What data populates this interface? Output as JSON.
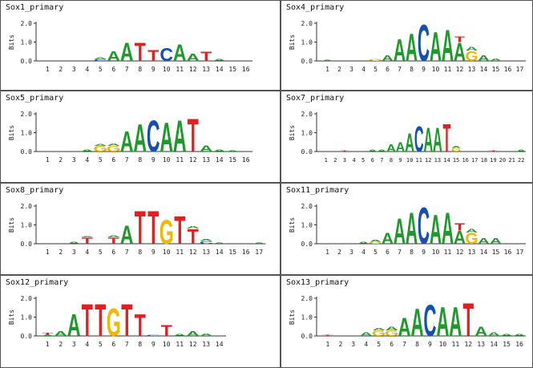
{
  "axis": {
    "ylabel": "Bits",
    "yticks": [
      "2.0",
      "1.0",
      "0.0"
    ]
  },
  "colors": {
    "A": "#1e9a2a",
    "C": "#1450b4",
    "G": "#f0b800",
    "T": "#e02020"
  },
  "panels": [
    {
      "title": "Sox1_primary",
      "length": 16,
      "logo": [
        [],
        [],
        [],
        [],
        [
          [
            "C",
            0.08
          ],
          [
            "A",
            0.1
          ]
        ],
        [
          [
            "A",
            0.55
          ]
        ],
        [
          [
            "A",
            1.0
          ]
        ],
        [
          [
            "T",
            1.0
          ]
        ],
        [
          [
            "T",
            0.6
          ]
        ],
        [
          [
            "C",
            0.7
          ]
        ],
        [
          [
            "A",
            0.9
          ]
        ],
        [
          [
            "A",
            0.4
          ]
        ],
        [
          [
            "T",
            0.5
          ]
        ],
        [
          [
            "A",
            0.12
          ]
        ],
        [],
        []
      ]
    },
    {
      "title": "Sox4_primary",
      "length": 17,
      "logo": [
        [
          [
            "A",
            0.05
          ]
        ],
        [],
        [],
        [],
        [
          [
            "G",
            0.1
          ]
        ],
        [
          [
            "A",
            0.3
          ]
        ],
        [
          [
            "A",
            1.2
          ]
        ],
        [
          [
            "A",
            1.5
          ]
        ],
        [
          [
            "C",
            2.0
          ]
        ],
        [
          [
            "A",
            1.6
          ]
        ],
        [
          [
            "A",
            1.7
          ]
        ],
        [
          [
            "A",
            1.0
          ],
          [
            "T",
            0.3
          ]
        ],
        [
          [
            "G",
            0.55
          ],
          [
            "A",
            0.2
          ]
        ],
        [
          [
            "A",
            0.3
          ]
        ],
        [
          [
            "A",
            0.15
          ]
        ],
        [],
        []
      ]
    },
    {
      "title": "Sox5_primary",
      "length": 16,
      "logo": [
        [],
        [],
        [],
        [
          [
            "A",
            0.1
          ]
        ],
        [
          [
            "G",
            0.3
          ],
          [
            "A",
            0.1
          ]
        ],
        [
          [
            "G",
            0.3
          ],
          [
            "A",
            0.15
          ]
        ],
        [
          [
            "A",
            1.1
          ]
        ],
        [
          [
            "A",
            1.5
          ]
        ],
        [
          [
            "C",
            1.7
          ]
        ],
        [
          [
            "A",
            1.6
          ]
        ],
        [
          [
            "A",
            1.7
          ]
        ],
        [
          [
            "T",
            1.8
          ]
        ],
        [
          [
            "A",
            0.35
          ]
        ],
        [
          [
            "A",
            0.1
          ]
        ],
        [
          [
            "A",
            0.05
          ]
        ],
        []
      ]
    },
    {
      "title": "Sox7_primary",
      "length": 22,
      "logo": [
        [],
        [],
        [
          [
            "T",
            0.05
          ]
        ],
        [],
        [],
        [
          [
            "A",
            0.12
          ]
        ],
        [
          [
            "A",
            0.1
          ]
        ],
        [
          [
            "A",
            0.4
          ]
        ],
        [
          [
            "A",
            0.5
          ]
        ],
        [
          [
            "A",
            1.0
          ]
        ],
        [
          [
            "C",
            1.4
          ]
        ],
        [
          [
            "A",
            1.3
          ]
        ],
        [
          [
            "A",
            1.3
          ]
        ],
        [
          [
            "T",
            1.5
          ]
        ],
        [
          [
            "G",
            0.2
          ],
          [
            "A",
            0.1
          ]
        ],
        [],
        [],
        [],
        [
          [
            "T",
            0.05
          ]
        ],
        [],
        [],
        [
          [
            "A",
            0.1
          ]
        ]
      ]
    },
    {
      "title": "Sox8_primary",
      "length": 17,
      "logo": [
        [],
        [],
        [
          [
            "A",
            0.1
          ]
        ],
        [
          [
            "T",
            0.35
          ],
          [
            "A",
            0.05
          ]
        ],
        [],
        [
          [
            "T",
            0.35
          ],
          [
            "A",
            0.1
          ]
        ],
        [
          [
            "A",
            1.0
          ]
        ],
        [
          [
            "T",
            1.8
          ]
        ],
        [
          [
            "T",
            1.8
          ]
        ],
        [
          [
            "G",
            1.3
          ]
        ],
        [
          [
            "T",
            1.5
          ]
        ],
        [
          [
            "T",
            0.8
          ],
          [
            "A",
            0.15
          ]
        ],
        [
          [
            "C",
            0.15
          ],
          [
            "A",
            0.1
          ]
        ],
        [
          [
            "A",
            0.05
          ]
        ],
        [],
        [],
        [
          [
            "A",
            0.05
          ]
        ]
      ]
    },
    {
      "title": "Sox11_primary",
      "length": 17,
      "logo": [
        [],
        [],
        [],
        [
          [
            "A",
            0.1
          ]
        ],
        [
          [
            "G",
            0.1
          ],
          [
            "A",
            0.1
          ]
        ],
        [
          [
            "A",
            0.6
          ]
        ],
        [
          [
            "A",
            1.4
          ]
        ],
        [
          [
            "A",
            1.7
          ]
        ],
        [
          [
            "C",
            2.0
          ]
        ],
        [
          [
            "A",
            1.6
          ]
        ],
        [
          [
            "A",
            1.7
          ]
        ],
        [
          [
            "A",
            0.7
          ],
          [
            "T",
            0.4
          ]
        ],
        [
          [
            "G",
            0.6
          ],
          [
            "A",
            0.2
          ]
        ],
        [
          [
            "A",
            0.3
          ]
        ],
        [
          [
            "A",
            0.3
          ]
        ],
        [],
        []
      ]
    },
    {
      "title": "Sox12_primary",
      "length": 14,
      "logo": [
        [
          [
            "A",
            0.05
          ],
          [
            "T",
            0.15
          ]
        ],
        [
          [
            "A",
            0.25
          ]
        ],
        [
          [
            "A",
            1.2
          ]
        ],
        [
          [
            "T",
            1.75
          ]
        ],
        [
          [
            "T",
            1.75
          ]
        ],
        [
          [
            "G",
            1.5
          ]
        ],
        [
          [
            "T",
            1.75
          ]
        ],
        [
          [
            "T",
            1.2
          ]
        ],
        [
          [
            "C",
            0.05
          ]
        ],
        [
          [
            "T",
            0.6
          ]
        ],
        [
          [
            "A",
            0.1
          ]
        ],
        [
          [
            "A",
            0.25
          ]
        ],
        [
          [
            "A",
            0.15
          ]
        ],
        []
      ]
    },
    {
      "title": "Sox13_primary",
      "length": 16,
      "logo": [
        [
          [
            "T",
            0.05
          ]
        ],
        [],
        [],
        [
          [
            "A",
            0.2
          ]
        ],
        [
          [
            "G",
            0.3
          ],
          [
            "A",
            0.15
          ]
        ],
        [
          [
            "G",
            0.3
          ],
          [
            "A",
            0.2
          ]
        ],
        [
          [
            "A",
            1.0
          ]
        ],
        [
          [
            "A",
            1.5
          ]
        ],
        [
          [
            "C",
            1.7
          ]
        ],
        [
          [
            "A",
            1.6
          ]
        ],
        [
          [
            "A",
            1.6
          ]
        ],
        [
          [
            "T",
            1.8
          ]
        ],
        [
          [
            "A",
            0.5
          ]
        ],
        [
          [
            "A",
            0.2
          ]
        ],
        [
          [
            "A",
            0.1
          ]
        ],
        [
          [
            "A",
            0.1
          ]
        ]
      ]
    }
  ]
}
